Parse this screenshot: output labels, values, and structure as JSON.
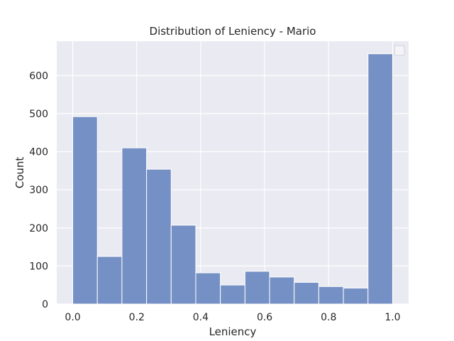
{
  "chart_data": {
    "type": "bar",
    "title": "Distribution of Leniency - Mario",
    "xlabel": "Leniency",
    "ylabel": "Count",
    "bin_edges": [
      0.0,
      0.0769,
      0.1538,
      0.2308,
      0.3077,
      0.3846,
      0.4615,
      0.5385,
      0.6154,
      0.6923,
      0.7692,
      0.8462,
      0.9231,
      1.0
    ],
    "values": [
      492,
      125,
      410,
      354,
      207,
      82,
      50,
      86,
      71,
      57,
      46,
      42,
      657
    ],
    "xlim": [
      -0.05,
      1.05
    ],
    "ylim": [
      0,
      690
    ],
    "xticks": [
      0.0,
      0.2,
      0.4,
      0.6,
      0.8,
      1.0
    ],
    "xtick_labels": [
      "0.0",
      "0.2",
      "0.4",
      "0.6",
      "0.8",
      "1.0"
    ],
    "yticks": [
      0,
      100,
      200,
      300,
      400,
      500,
      600
    ],
    "ytick_labels": [
      "0",
      "100",
      "200",
      "300",
      "400",
      "500",
      "600"
    ],
    "grid": true,
    "legend": "top-right (empty)",
    "colors": {
      "bar": "#7590c4",
      "bar_edge": "#ffffff",
      "background": "#eaeaf2",
      "grid": "#ffffff",
      "text": "#262626"
    }
  }
}
